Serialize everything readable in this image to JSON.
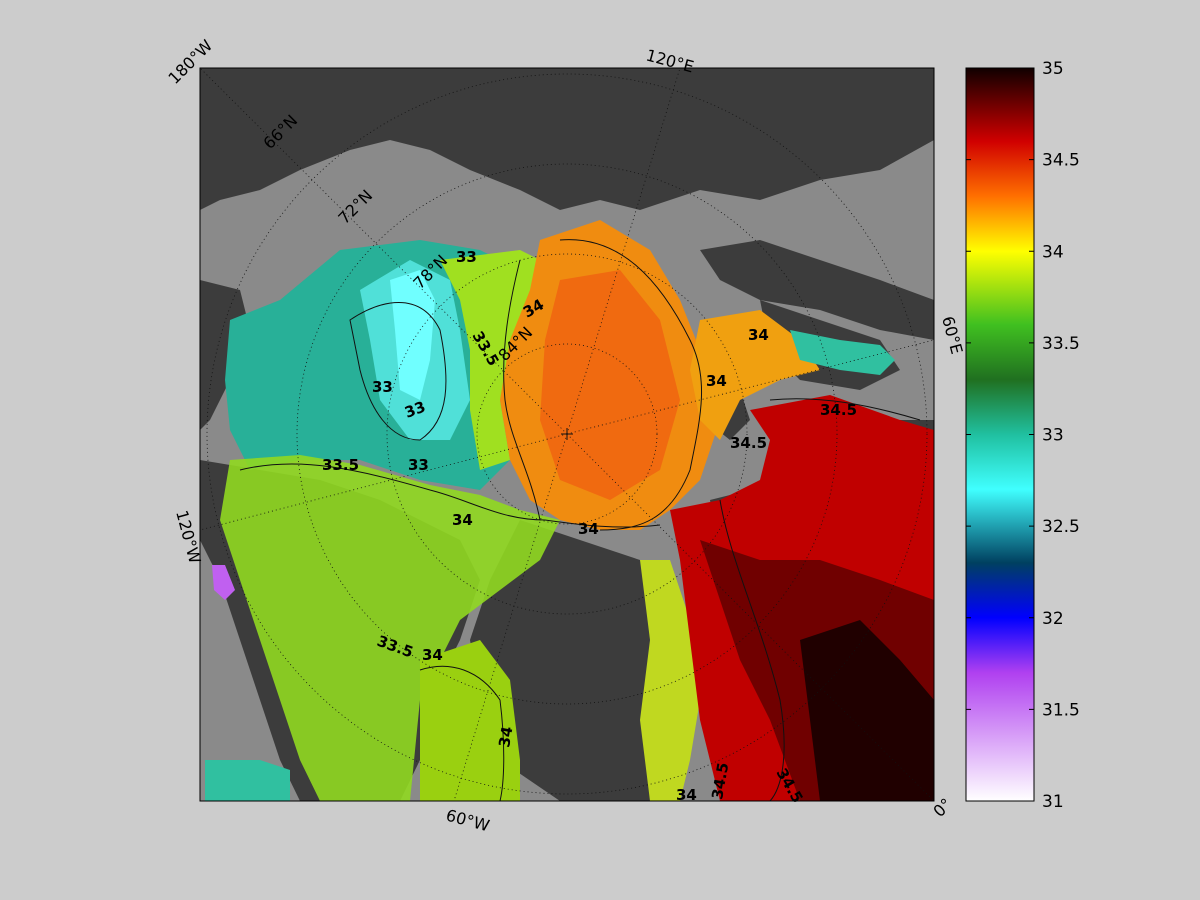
{
  "map": {
    "longitude_labels": {
      "lon_180w": "180°W",
      "lon_120e": "120°E",
      "lon_60e": "60°E",
      "lon_0": "0°",
      "lon_60w": "60°W",
      "lon_120w": "120°W"
    },
    "latitude_labels": {
      "lat_66": "66°N",
      "lat_72": "72°N",
      "lat_78": "78°N",
      "lat_84": "84°N"
    },
    "contour_labels": [
      {
        "text": "33"
      },
      {
        "text": "33"
      },
      {
        "text": "33"
      },
      {
        "text": "33"
      },
      {
        "text": "33.5"
      },
      {
        "text": "33.5"
      },
      {
        "text": "33.5"
      },
      {
        "text": "34"
      },
      {
        "text": "34"
      },
      {
        "text": "34"
      },
      {
        "text": "34"
      },
      {
        "text": "34"
      },
      {
        "text": "34"
      },
      {
        "text": "34"
      },
      {
        "text": "34"
      },
      {
        "text": "34.5"
      },
      {
        "text": "34.5"
      },
      {
        "text": "34.5"
      },
      {
        "text": "34.5"
      }
    ],
    "colors": {
      "land": "#3c3c3c",
      "shelf_no_data": "#8a8a8a",
      "background": "#cccccc"
    }
  },
  "colorbar": {
    "min": 31,
    "max": 35,
    "tick_values": [
      31,
      31.5,
      32,
      32.5,
      33,
      33.5,
      34,
      34.5,
      35
    ],
    "tick_labels": [
      "31",
      "31.5",
      "32",
      "32.5",
      "33",
      "33.5",
      "34",
      "34.5",
      "35"
    ],
    "colormap": [
      {
        "value": 31.0,
        "color": "#ffffff"
      },
      {
        "value": 31.7,
        "color": "#b040f0"
      },
      {
        "value": 32.0,
        "color": "#0000ff"
      },
      {
        "value": 32.3,
        "color": "#004060"
      },
      {
        "value": 32.7,
        "color": "#40ffff"
      },
      {
        "value": 33.0,
        "color": "#20c0a0"
      },
      {
        "value": 33.3,
        "color": "#207020"
      },
      {
        "value": 33.6,
        "color": "#40c020"
      },
      {
        "value": 34.0,
        "color": "#ffff00"
      },
      {
        "value": 34.3,
        "color": "#ff7000"
      },
      {
        "value": 34.6,
        "color": "#d00000"
      },
      {
        "value": 35.0,
        "color": "#100000"
      }
    ]
  }
}
